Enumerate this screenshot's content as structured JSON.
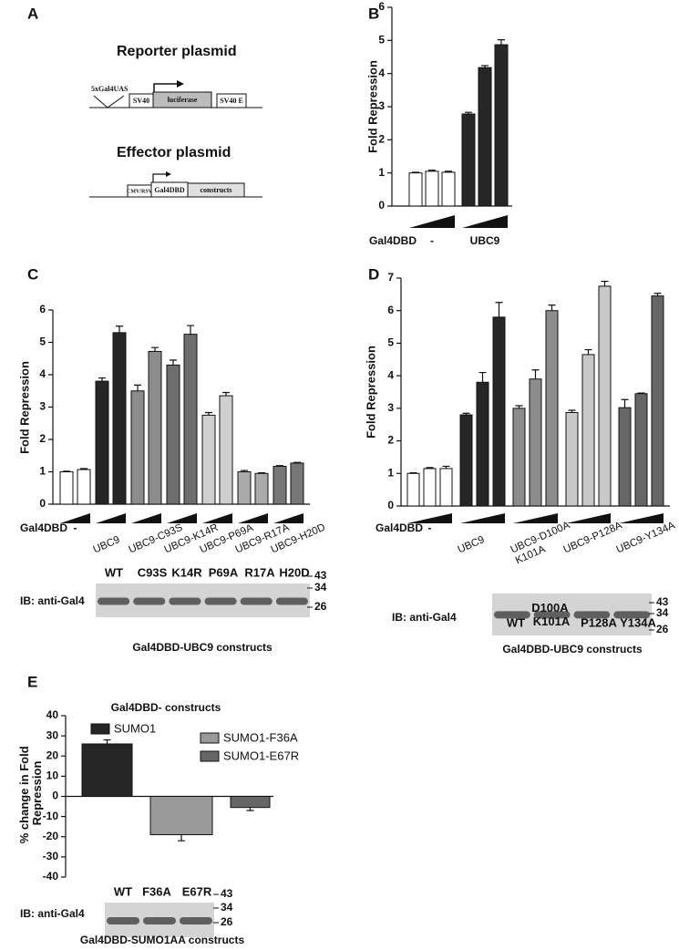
{
  "panel_labels": [
    "A",
    "B",
    "C",
    "D",
    "E"
  ],
  "diagram": {
    "reporter": {
      "title": "Reporter plasmid",
      "parts": [
        "5xGal4UAS",
        "SV40",
        "luciferase",
        "SV40 E"
      ]
    },
    "effector": {
      "title": "Effector plasmid",
      "parts": [
        "CMV/RSV",
        "Gal4DBD",
        "constructs"
      ]
    }
  },
  "chart_data": [
    {
      "type": "bar",
      "y_label": "Fold Repression",
      "x_label": "Gal4DBD",
      "ylim": [
        0,
        6
      ],
      "yticks": [
        0,
        1,
        2,
        3,
        4,
        5,
        6
      ],
      "groups": [
        {
          "label": "-",
          "color": "#ffffff",
          "values": [
            1.0,
            1.05,
            1.02
          ],
          "errors": [
            0.02,
            0.03,
            0.03
          ]
        },
        {
          "label": "UBC9",
          "color": "#262626",
          "values": [
            2.78,
            4.18,
            4.87
          ],
          "errors": [
            0.05,
            0.06,
            0.15
          ]
        }
      ]
    },
    {
      "type": "bar",
      "y_label": "Fold Repression",
      "x_label": "Gal4DBD",
      "ylim": [
        0,
        6
      ],
      "yticks": [
        0,
        1,
        2,
        3,
        4,
        5,
        6
      ],
      "groups": [
        {
          "label": "-",
          "color": "#ffffff",
          "values": [
            1.0,
            1.07
          ],
          "errors": [
            0.02,
            0.03
          ]
        },
        {
          "label": "UBC9",
          "color": "#262626",
          "values": [
            3.8,
            5.3
          ],
          "errors": [
            0.1,
            0.2
          ]
        },
        {
          "label": "UBC9-C93S",
          "color": "#8c8c8c",
          "values": [
            3.5,
            4.72
          ],
          "errors": [
            0.18,
            0.12
          ]
        },
        {
          "label": "UBC9-K14R",
          "color": "#6e6e6e",
          "values": [
            4.3,
            5.25
          ],
          "errors": [
            0.15,
            0.27
          ]
        },
        {
          "label": "UBC9-P69A",
          "color": "#cfcfcf",
          "values": [
            2.75,
            3.35
          ],
          "errors": [
            0.08,
            0.1
          ]
        },
        {
          "label": "UBC9-R17A",
          "color": "#aaaaaa",
          "values": [
            1.0,
            0.95
          ],
          "errors": [
            0.04,
            0.02
          ]
        },
        {
          "label": "UBC9-H20D",
          "color": "#777777",
          "values": [
            1.17,
            1.27
          ],
          "errors": [
            0.02,
            0.02
          ]
        }
      ]
    },
    {
      "type": "bar",
      "y_label": "Fold Repression",
      "x_label": "Gal4DBD",
      "ylim": [
        0,
        7
      ],
      "yticks": [
        0,
        1,
        2,
        3,
        4,
        5,
        6,
        7
      ],
      "groups": [
        {
          "label": "-",
          "color": "#ffffff",
          "values": [
            1.0,
            1.15,
            1.15
          ],
          "errors": [
            0.02,
            0.03,
            0.07
          ]
        },
        {
          "label": "UBC9",
          "color": "#262626",
          "values": [
            2.8,
            3.8,
            5.8
          ],
          "errors": [
            0.05,
            0.3,
            0.45
          ]
        },
        {
          "label": "UBC9-D100A K101A",
          "color": "#8c8c8c",
          "values": [
            3.0,
            3.9,
            6.0
          ],
          "errors": [
            0.08,
            0.28,
            0.17
          ]
        },
        {
          "label": "UBC9-P128A",
          "color": "#c8c8c8",
          "values": [
            2.87,
            4.65,
            6.75
          ],
          "errors": [
            0.07,
            0.15,
            0.15
          ]
        },
        {
          "label": "UBC9-Y134A",
          "color": "#666666",
          "values": [
            3.02,
            3.45,
            6.45
          ],
          "errors": [
            0.25,
            0.02,
            0.08
          ]
        }
      ]
    },
    {
      "type": "bar",
      "title": "Gal4DBD- constructs",
      "y_label": "% change in Fold Repression",
      "ylim": [
        -40,
        40
      ],
      "yticks": [
        -40,
        -30,
        -20,
        -10,
        0,
        10,
        20,
        30,
        40
      ],
      "series": [
        {
          "name": "SUMO1",
          "color": "#262626",
          "values": [
            26
          ],
          "errors": [
            2
          ]
        },
        {
          "name": "SUMO1-F36A",
          "color": "#999999",
          "values": [
            -19
          ],
          "errors": [
            3
          ]
        },
        {
          "name": "SUMO1-E67R",
          "color": "#666666",
          "values": [
            -5.5
          ],
          "errors": [
            1.5
          ]
        }
      ]
    }
  ],
  "blots": [
    {
      "label": "IB: anti-Gal4",
      "lanes": [
        "WT",
        "C93S",
        "K14R",
        "P69A",
        "R17A",
        "H20D"
      ],
      "markers": [
        "43",
        "34",
        "26"
      ],
      "caption": "Gal4DBD-UBC9 constructs"
    },
    {
      "label": "IB: anti-Gal4",
      "lanes": [
        "WT",
        "D100A K101A",
        "P128A",
        "Y134A"
      ],
      "markers": [
        "43",
        "34",
        "26"
      ],
      "caption": "Gal4DBD-UBC9 constructs"
    },
    {
      "label": "IB: anti-Gal4",
      "lanes": [
        "WT",
        "F36A",
        "E67R"
      ],
      "markers": [
        "43",
        "34",
        "26"
      ],
      "caption": "Gal4DBD-SUMO1AA constructs"
    }
  ]
}
